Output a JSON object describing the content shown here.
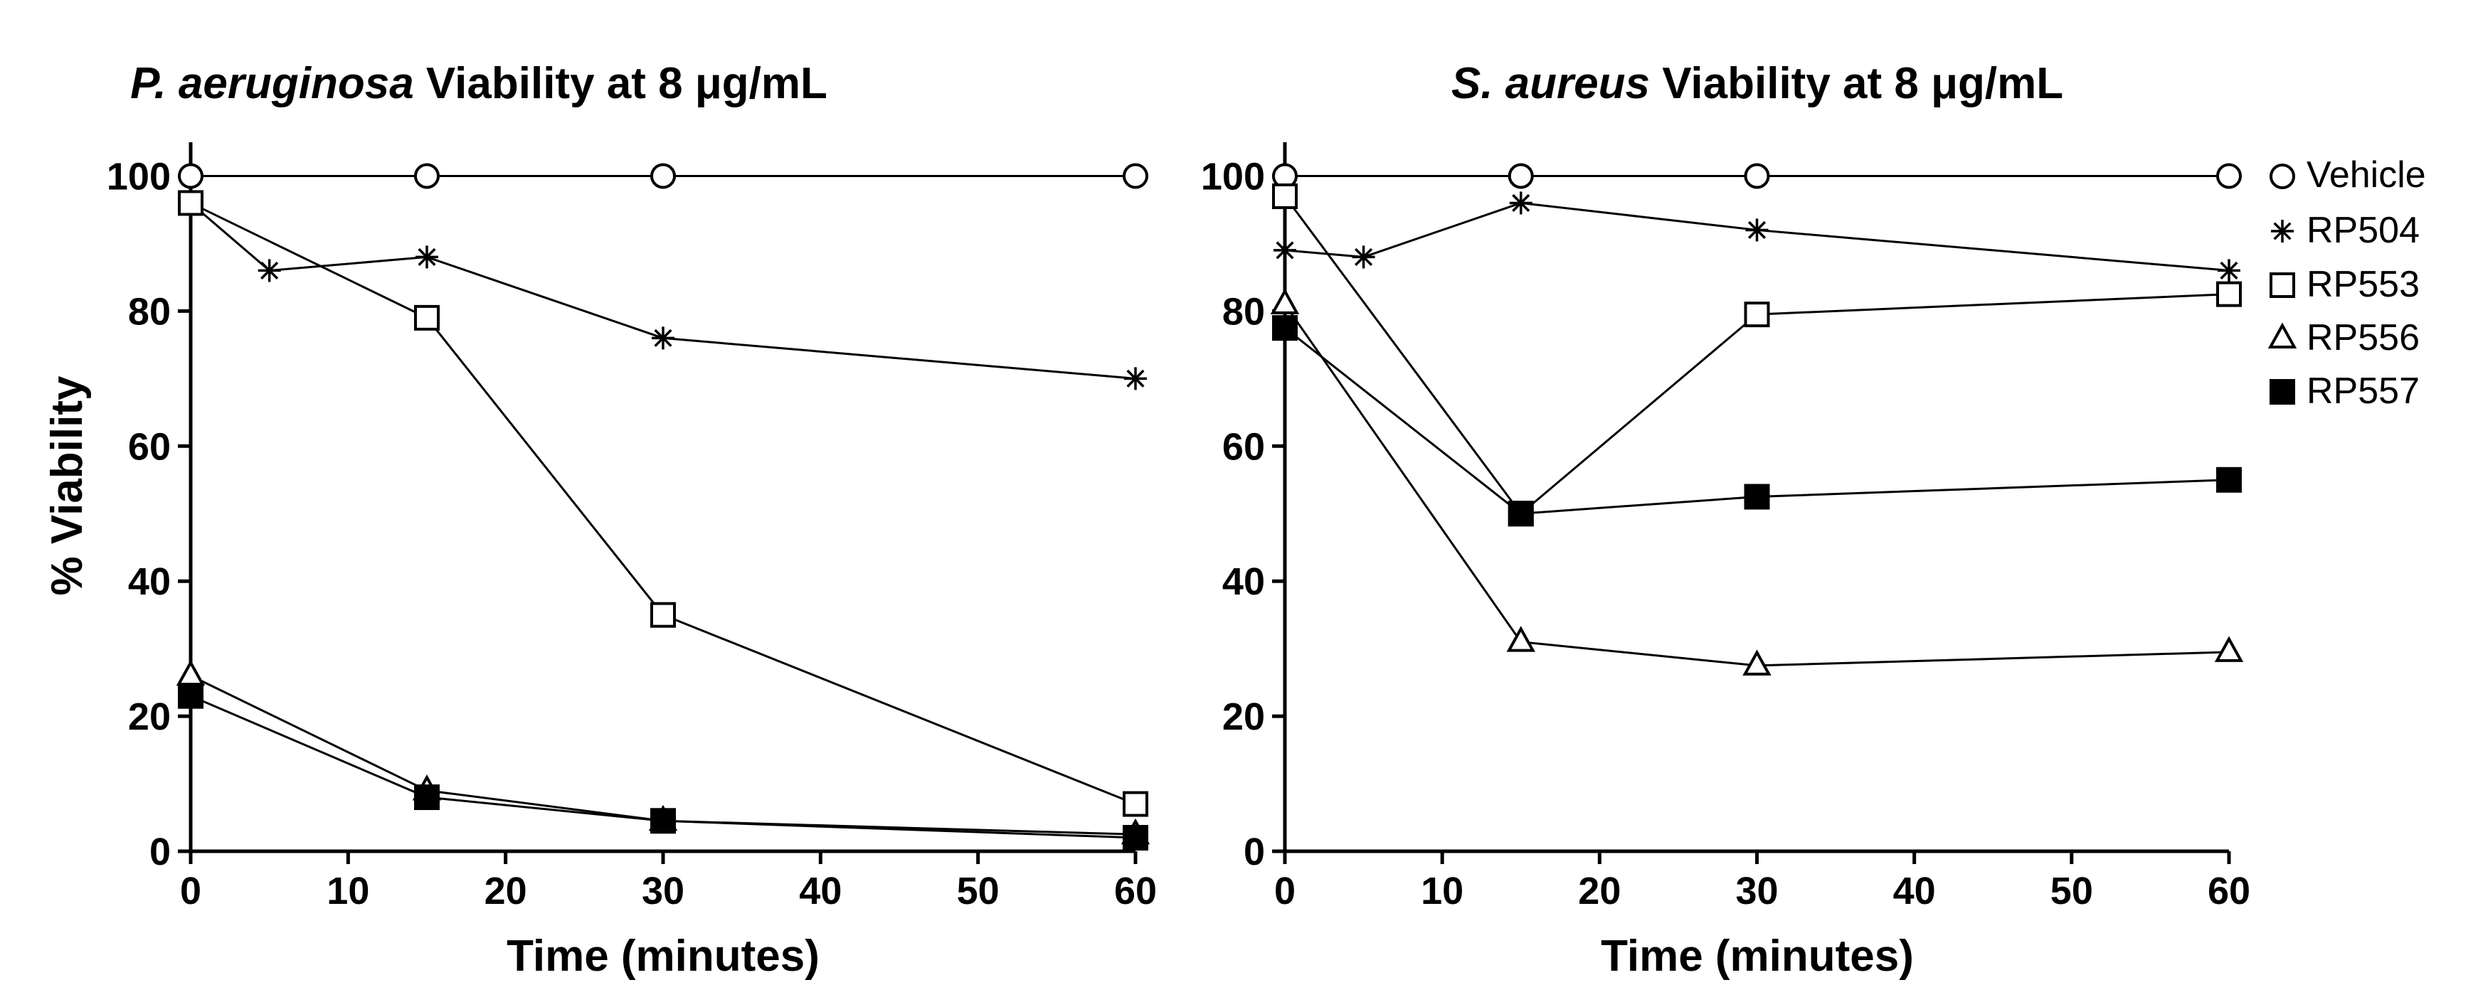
{
  "chart_data": [
    {
      "type": "line",
      "title": "P. aeruginosa Viability at 8 μg/mL",
      "title_italic": "P. aeruginosa",
      "title_rest": " Viability at 8 μg/mL",
      "xlabel": "Time (minutes)",
      "ylabel": "% Viability",
      "xlim": [
        0,
        60
      ],
      "ylim": [
        0,
        105
      ],
      "xticks": [
        0,
        10,
        20,
        30,
        40,
        50,
        60
      ],
      "yticks": [
        0,
        20,
        40,
        60,
        80,
        100
      ],
      "grid": false,
      "series": [
        {
          "name": "Vehicle",
          "marker": "circle",
          "x": [
            0,
            15,
            30,
            60
          ],
          "y": [
            100,
            100,
            100,
            100
          ]
        },
        {
          "name": "RP504",
          "marker": "star",
          "x": [
            0,
            5,
            15,
            30,
            60
          ],
          "y": [
            96,
            86,
            88,
            76,
            70
          ]
        },
        {
          "name": "RP553",
          "marker": "square-open",
          "x": [
            0,
            15,
            30,
            60
          ],
          "y": [
            96,
            79,
            35,
            7
          ]
        },
        {
          "name": "RP556",
          "marker": "triangle",
          "x": [
            0,
            15,
            30,
            60
          ],
          "y": [
            26,
            9,
            4.5,
            2.5
          ]
        },
        {
          "name": "RP557",
          "marker": "square-filled",
          "x": [
            0,
            15,
            30,
            60
          ],
          "y": [
            23,
            8,
            4.5,
            2
          ]
        }
      ]
    },
    {
      "type": "line",
      "title": "S. aureus Viability at 8 μg/mL",
      "title_italic": "S. aureus",
      "title_rest": " Viability at 8 μg/mL",
      "xlabel": "Time (minutes)",
      "ylabel": "",
      "xlim": [
        0,
        60
      ],
      "ylim": [
        0,
        105
      ],
      "xticks": [
        0,
        10,
        20,
        30,
        40,
        50,
        60
      ],
      "yticks": [
        0,
        20,
        40,
        60,
        80,
        100
      ],
      "grid": false,
      "legend_position": "top-right",
      "series": [
        {
          "name": "Vehicle",
          "marker": "circle",
          "x": [
            0,
            15,
            30,
            60
          ],
          "y": [
            100,
            100,
            100,
            100
          ]
        },
        {
          "name": "RP504",
          "marker": "star",
          "x": [
            0,
            5,
            15,
            30,
            60
          ],
          "y": [
            89,
            88,
            96,
            92,
            86
          ]
        },
        {
          "name": "RP553",
          "marker": "square-open",
          "x": [
            0,
            15,
            30,
            60
          ],
          "y": [
            97,
            50,
            79.5,
            82.5
          ]
        },
        {
          "name": "RP556",
          "marker": "triangle",
          "x": [
            0,
            15,
            30,
            60
          ],
          "y": [
            81,
            31,
            27.5,
            29.5
          ]
        },
        {
          "name": "RP557",
          "marker": "square-filled",
          "x": [
            0,
            15,
            30,
            60
          ],
          "y": [
            77.5,
            50,
            52.5,
            55
          ]
        }
      ]
    }
  ],
  "legend": {
    "entries": [
      {
        "name": "Vehicle",
        "marker": "circle"
      },
      {
        "name": "RP504",
        "marker": "star"
      },
      {
        "name": "RP553",
        "marker": "square-open"
      },
      {
        "name": "RP556",
        "marker": "triangle"
      },
      {
        "name": "RP557",
        "marker": "square-filled"
      }
    ]
  }
}
